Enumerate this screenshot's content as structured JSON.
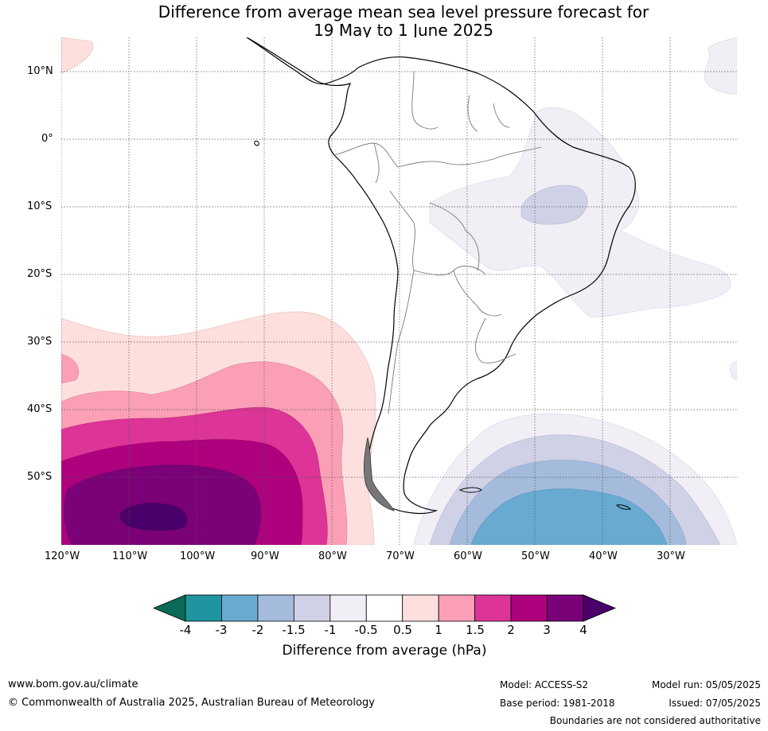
{
  "title": {
    "line1": "Difference from average mean sea level pressure forecast for",
    "line2": "19 May to 1 June 2025"
  },
  "lat_labels": [
    "10°N",
    "0°",
    "10°S",
    "20°S",
    "30°S",
    "40°S",
    "50°S"
  ],
  "lon_labels": [
    "120°W",
    "110°W",
    "100°W",
    "90°W",
    "80°W",
    "70°W",
    "60°W",
    "50°W",
    "40°W",
    "30°W"
  ],
  "colorbar": {
    "ticks": [
      "-4",
      "-3",
      "-2",
      "-1.5",
      "-1",
      "-0.5",
      "0.5",
      "1",
      "1.5",
      "2",
      "3",
      "4"
    ],
    "colors": [
      "#0a6b58",
      "#2094a0",
      "#68aad0",
      "#a4bbdb",
      "#d0d1e6",
      "#f1eef5",
      "#ffffff",
      "#fde0dd",
      "#fa9fb5",
      "#dd3497",
      "#ae017e",
      "#7a0177",
      "#49006a"
    ],
    "label": "Difference from average (hPa)"
  },
  "footer": {
    "website": "www.bom.gov.au/climate",
    "copyright": "© Commonwealth of Australia 2025, Australian Bureau of Meteorology",
    "model": "Model: ACCESS-S2",
    "base_period": "Base period: 1981-2018",
    "model_run": "Model run: 05/05/2025",
    "issued": "Issued: 07/05/2025",
    "disclaimer": "Boundaries are not considered authoritative"
  }
}
